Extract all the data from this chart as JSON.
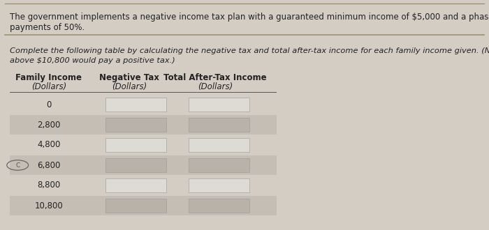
{
  "bg_color": "#d3cdc4",
  "top_text_line1": "The government implements a negative income tax plan with a guaranteed minimum income of $5,000 and a phase-out rate for",
  "top_text_line2": "payments of 50%.",
  "middle_text_line1": "Complete the following table by calculating the negative tax and total after-tax income for each family income given. (Note: Suppose that any income",
  "middle_text_line2": "above $10,800 would pay a positive tax.)",
  "col_headers": [
    "Family Income",
    "Negative Tax",
    "Total After-Tax Income"
  ],
  "col_subheaders": [
    "(Dollars)",
    "(Dollars)",
    "(Dollars)"
  ],
  "family_incomes": [
    "0",
    "2,800",
    "4,800",
    "6,800",
    "8,800",
    "10,800"
  ],
  "separator_color": "#a09070",
  "header_line_color": "#555555",
  "shaded_rows": [
    1,
    3,
    5
  ],
  "shaded_color": "#c4beb5",
  "unshaded_color": "#d3cdc4",
  "input_box_unshaded": "#dedad4",
  "input_box_shaded": "#b8b2a8",
  "circle_row": 3,
  "font_size_top": 8.5,
  "font_size_middle": 8.2,
  "font_size_table": 8.5,
  "text_color": "#222222"
}
